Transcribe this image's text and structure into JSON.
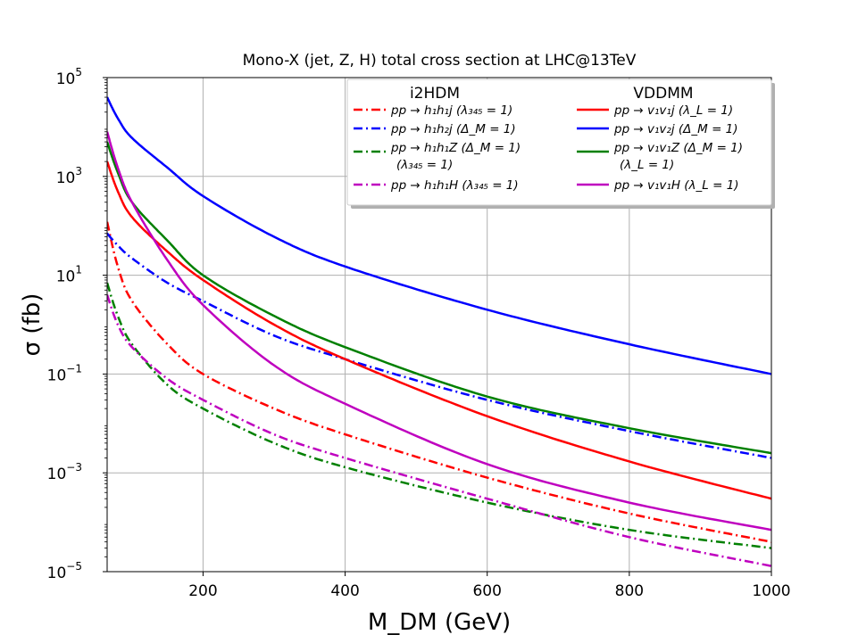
{
  "chart_data": {
    "type": "line",
    "title": "Mono-X (jet, Z, H) total cross section at LHC@13TeV",
    "xlabel": "M_DM (GeV)",
    "ylabel": "σ (fb)",
    "xlim": [
      65,
      1000
    ],
    "ylim": [
      1e-05,
      100000.0
    ],
    "yscale": "log",
    "grid": true,
    "x_ticks": [
      "200",
      "400",
      "600",
      "800",
      "1000"
    ],
    "y_ticks": [
      {
        "base": "10",
        "exp": "−5"
      },
      {
        "base": "10",
        "exp": "−3"
      },
      {
        "base": "10",
        "exp": "−1"
      },
      {
        "base": "10",
        "exp": "1"
      },
      {
        "base": "10",
        "exp": "3"
      },
      {
        "base": "10",
        "exp": "5"
      }
    ],
    "legend": {
      "placement": "top-right",
      "col1_title": "i2HDM",
      "col2_title": "VDDMM",
      "labels": [
        "pp → h₁h₁j (λ₃₄₅ = 1)",
        "pp → h₁h₂j (Δ_M = 1)",
        "pp → h₁h₁Z (Δ_M = 1) (λ₃₄₅ = 1)",
        "pp → h₁h₁H (λ₃₄₅ = 1)",
        "pp → v₁v₁j (λ_L = 1)",
        "pp → v₁v₂j (Δ_M = 1)",
        "pp → v₁v₁Z (Δ_M = 1) (λ_L = 1)",
        "pp → v₁v₁H (λ_L = 1)"
      ]
    },
    "series": [
      {
        "name": "pp → h₁h₁j (λ₃₄₅ = 1)",
        "model": "i2HDM",
        "color": "#ff0000",
        "style": "dashdot",
        "x": [
          65,
          80,
          100,
          150,
          200,
          300,
          400,
          600,
          800,
          1000
        ],
        "y": [
          120,
          15,
          3,
          0.4,
          0.1,
          0.02,
          0.006,
          0.0008,
          0.00015,
          4e-05
        ]
      },
      {
        "name": "pp → h₁h₂j (Δ_M = 1)",
        "model": "i2HDM",
        "color": "#0000ff",
        "style": "dashdot",
        "x": [
          65,
          80,
          100,
          150,
          200,
          300,
          400,
          600,
          800,
          1000
        ],
        "y": [
          70,
          40,
          22,
          7,
          3,
          0.6,
          0.2,
          0.03,
          0.007,
          0.002
        ]
      },
      {
        "name": "pp → h₁h₁Z (Δ_M = 1) (λ₃₄₅ = 1)",
        "model": "i2HDM",
        "color": "#008000",
        "style": "dashdot",
        "x": [
          65,
          80,
          100,
          150,
          200,
          300,
          400,
          600,
          800,
          1000
        ],
        "y": [
          7,
          1.5,
          0.4,
          0.06,
          0.02,
          0.004,
          0.0013,
          0.00025,
          7e-05,
          3e-05
        ]
      },
      {
        "name": "pp → h₁h₁H (λ₃₄₅ = 1)",
        "model": "i2HDM",
        "color": "#bf00bf",
        "style": "dashdot",
        "x": [
          65,
          80,
          100,
          150,
          200,
          300,
          400,
          600,
          800,
          1000
        ],
        "y": [
          4,
          1.0,
          0.35,
          0.08,
          0.03,
          0.006,
          0.002,
          0.0003,
          5e-05,
          1.3e-05
        ]
      },
      {
        "name": "pp → v₁v₁j (λ_L = 1)",
        "model": "VDDMM",
        "color": "#ff0000",
        "style": "solid",
        "x": [
          65,
          80,
          100,
          150,
          200,
          300,
          400,
          600,
          800,
          1000
        ],
        "y": [
          2000,
          500,
          150,
          30,
          8,
          1.0,
          0.2,
          0.014,
          0.0017,
          0.0003
        ]
      },
      {
        "name": "pp → v₁v₂j (Δ_M = 1)",
        "model": "VDDMM",
        "color": "#0000ff",
        "style": "solid",
        "x": [
          65,
          80,
          100,
          150,
          200,
          300,
          400,
          600,
          800,
          1000
        ],
        "y": [
          40000,
          15000,
          6000,
          1500,
          400,
          60,
          15,
          2,
          0.4,
          0.1
        ]
      },
      {
        "name": "pp → v₁v₁Z (Δ_M = 1) (λ_L = 1)",
        "model": "VDDMM",
        "color": "#008000",
        "style": "solid",
        "x": [
          65,
          80,
          100,
          150,
          200,
          300,
          400,
          600,
          800,
          1000
        ],
        "y": [
          5000,
          1200,
          300,
          50,
          10,
          1.5,
          0.35,
          0.035,
          0.008,
          0.0025
        ]
      },
      {
        "name": "pp → v₁v₁H (λ_L = 1)",
        "model": "VDDMM",
        "color": "#bf00bf",
        "style": "solid",
        "x": [
          65,
          80,
          100,
          150,
          200,
          300,
          400,
          600,
          800,
          1000
        ],
        "y": [
          8000,
          1500,
          300,
          20,
          2.5,
          0.15,
          0.025,
          0.0015,
          0.00025,
          7e-05
        ]
      }
    ]
  }
}
